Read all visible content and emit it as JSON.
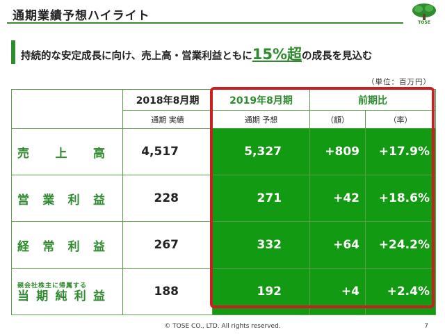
{
  "header": {
    "title": "通期業績予想ハイライト",
    "logo_text": "TOSE"
  },
  "headline": {
    "pre": "持続的な安定成長に向け、売上高・営業利益ともに",
    "emph": "15%超",
    "post": "の成長を見込む"
  },
  "unit": "（単位：百万円）",
  "table": {
    "columns": [
      {
        "top": "2018年8月期",
        "sub": "通期 実績"
      },
      {
        "top": "2019年8月期",
        "sub": "通期 予想"
      },
      {
        "top": "前期比",
        "sub": "（額）"
      },
      {
        "top": "",
        "sub": "（率）"
      }
    ],
    "rows": [
      {
        "label": [
          "売",
          "上",
          "高"
        ],
        "actual": "4,517",
        "forecast": "5,327",
        "diff": "+809",
        "rate": "+17.9%"
      },
      {
        "label": [
          "営",
          "業",
          "利",
          "益"
        ],
        "actual": "228",
        "forecast": "271",
        "diff": "+42",
        "rate": "+18.6%"
      },
      {
        "label": [
          "経",
          "常",
          "利",
          "益"
        ],
        "actual": "267",
        "forecast": "332",
        "diff": "+64",
        "rate": "+24.2%"
      },
      {
        "label_small": "親会社株主に帰属する",
        "label": [
          "当",
          "期",
          "純",
          "利",
          "益"
        ],
        "actual": "188",
        "forecast": "192",
        "diff": "+4",
        "rate": "+2.4%"
      }
    ]
  },
  "colors": {
    "accent_green": "#2e8b2e",
    "cell_green": "#139a13",
    "highlight_red": "#c82020"
  },
  "footer": {
    "copyright": "© TOSE CO., LTD. All rights reserved.",
    "page": "7"
  }
}
